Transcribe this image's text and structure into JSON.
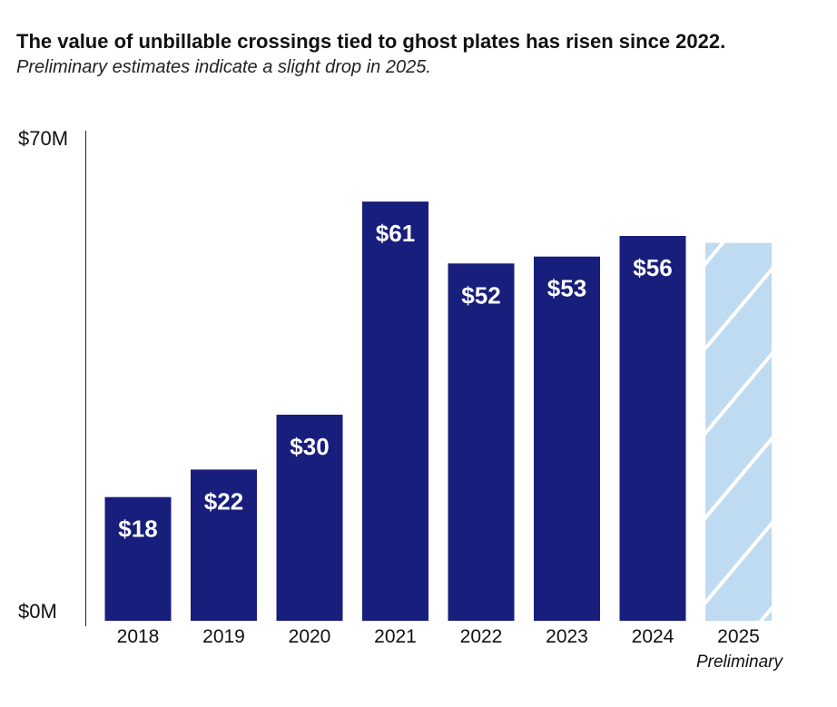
{
  "chart_data": {
    "type": "bar",
    "title": "The value of unbillable crossings tied to ghost plates has risen since 2022.",
    "subtitle": "Preliminary estimates indicate a slight drop in 2025.",
    "categories": [
      "2018",
      "2019",
      "2020",
      "2021",
      "2022",
      "2023",
      "2024",
      "2025"
    ],
    "values": [
      18,
      22,
      30,
      61,
      52,
      53,
      56,
      55
    ],
    "value_labels": [
      "$18",
      "$22",
      "$30",
      "$61",
      "$52",
      "$53",
      "$56",
      ""
    ],
    "preliminary": [
      false,
      false,
      false,
      false,
      false,
      false,
      false,
      true
    ],
    "preliminary_note": "Preliminary",
    "ylim": [
      0,
      70
    ],
    "y_ticks": [
      {
        "value": 70,
        "label": "$70M"
      },
      {
        "value": 0,
        "label": "$0M"
      }
    ],
    "xlabel": "",
    "ylabel": "",
    "grid": false
  },
  "colors": {
    "bar": "#181e7c",
    "preliminary_fill": "#bfdbf2",
    "preliminary_stripe": "#ffffff"
  }
}
